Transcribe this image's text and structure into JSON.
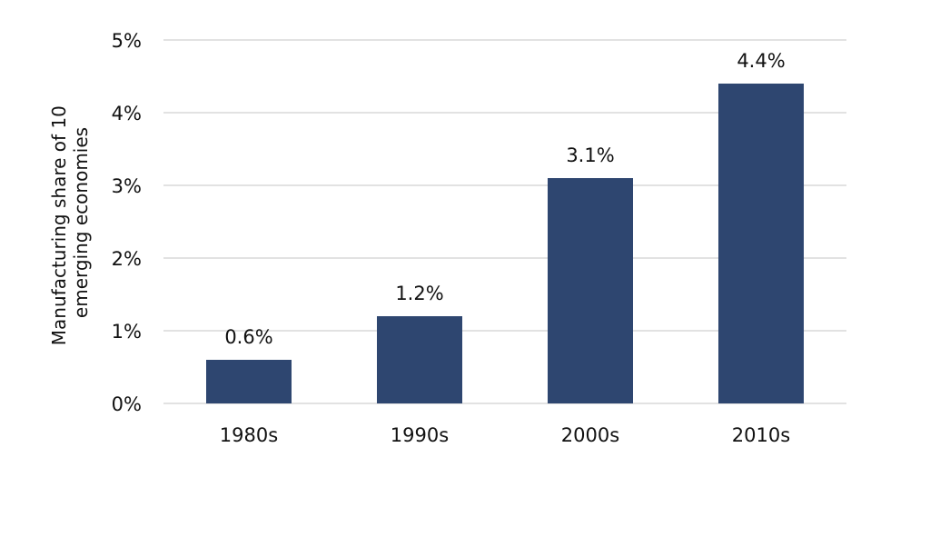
{
  "chart_data": {
    "type": "bar",
    "categories": [
      "1980s",
      "1990s",
      "2000s",
      "2010s"
    ],
    "values": [
      0.6,
      1.2,
      3.1,
      4.4
    ],
    "value_labels": [
      "0.6%",
      "1.2%",
      "3.1%",
      "4.4%"
    ],
    "ylabel_lines": [
      "Manufacturing share of 10",
      "emerging economies"
    ],
    "ylim": [
      0,
      5
    ],
    "yticks": [
      0,
      1,
      2,
      3,
      4,
      5
    ],
    "ytick_labels": [
      "0%",
      "1%",
      "2%",
      "3%",
      "4%",
      "5%"
    ],
    "grid": true,
    "bar_color": "#2e4670",
    "grid_color": "#d9d9d9"
  }
}
